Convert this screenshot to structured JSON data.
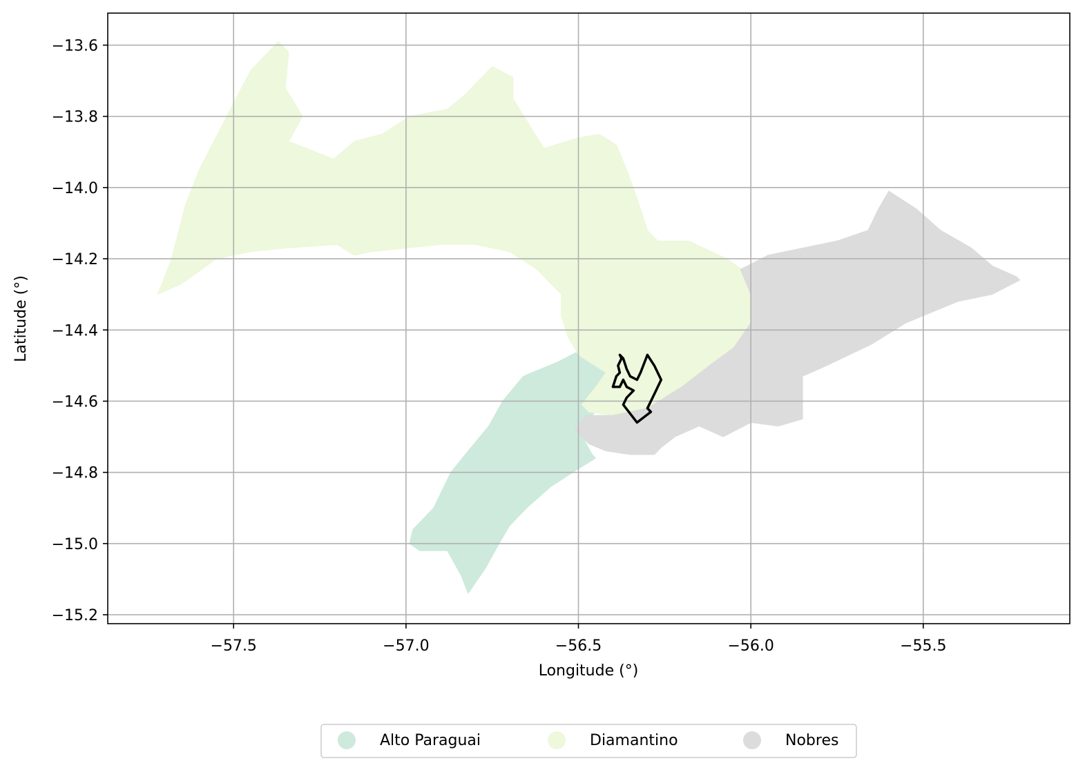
{
  "chart_data": {
    "type": "map",
    "xlabel": "Longitude (°)",
    "ylabel": "Latitude (°)",
    "xlim": [
      -57.865,
      -55.075
    ],
    "ylim": [
      -15.225,
      -13.51
    ],
    "grid": true,
    "xticks": [
      {
        "value": -57.5,
        "label": "−57.5"
      },
      {
        "value": -57.0,
        "label": "−57.0"
      },
      {
        "value": -56.5,
        "label": "−56.5"
      },
      {
        "value": -56.0,
        "label": "−56.0"
      },
      {
        "value": -55.5,
        "label": "−55.5"
      }
    ],
    "yticks": [
      {
        "value": -13.6,
        "label": "−13.6"
      },
      {
        "value": -13.8,
        "label": "−13.8"
      },
      {
        "value": -14.0,
        "label": "−14.0"
      },
      {
        "value": -14.2,
        "label": "−14.2"
      },
      {
        "value": -14.4,
        "label": "−14.4"
      },
      {
        "value": -14.6,
        "label": "−14.6"
      },
      {
        "value": -14.8,
        "label": "−14.8"
      },
      {
        "value": -15.0,
        "label": "−15.0"
      },
      {
        "value": -15.2,
        "label": "−15.2"
      }
    ],
    "legend_position": "bottom-center",
    "regions": [
      {
        "name": "Alto Paraguai",
        "color": "#cdeadc",
        "coords": [
          [
            -56.45,
            -14.42
          ],
          [
            -56.42,
            -14.47
          ],
          [
            -56.37,
            -14.5
          ],
          [
            -56.38,
            -14.55
          ],
          [
            -56.44,
            -14.62
          ],
          [
            -56.5,
            -14.68
          ],
          [
            -56.46,
            -14.75
          ],
          [
            -56.45,
            -14.76
          ],
          [
            -56.5,
            -14.79
          ],
          [
            -56.58,
            -14.84
          ],
          [
            -56.65,
            -14.9
          ],
          [
            -56.7,
            -14.95
          ],
          [
            -56.73,
            -15.0
          ],
          [
            -56.77,
            -15.07
          ],
          [
            -56.82,
            -15.14
          ],
          [
            -56.84,
            -15.09
          ],
          [
            -56.88,
            -15.02
          ],
          [
            -56.96,
            -15.02
          ],
          [
            -56.99,
            -15.0
          ],
          [
            -56.98,
            -14.96
          ],
          [
            -56.92,
            -14.9
          ],
          [
            -56.87,
            -14.8
          ],
          [
            -56.82,
            -14.74
          ],
          [
            -56.76,
            -14.67
          ],
          [
            -56.72,
            -14.6
          ],
          [
            -56.66,
            -14.53
          ],
          [
            -56.56,
            -14.49
          ],
          [
            -56.5,
            -14.46
          ]
        ]
      },
      {
        "name": "Diamantino",
        "color": "#edf8dc",
        "coords": [
          [
            -57.37,
            -13.59
          ],
          [
            -57.34,
            -13.62
          ],
          [
            -57.35,
            -13.72
          ],
          [
            -57.3,
            -13.8
          ],
          [
            -57.34,
            -13.87
          ],
          [
            -57.21,
            -13.92
          ],
          [
            -57.15,
            -13.87
          ],
          [
            -57.07,
            -13.85
          ],
          [
            -56.99,
            -13.8
          ],
          [
            -56.88,
            -13.78
          ],
          [
            -56.83,
            -13.74
          ],
          [
            -56.75,
            -13.66
          ],
          [
            -56.69,
            -13.69
          ],
          [
            -56.69,
            -13.75
          ],
          [
            -56.6,
            -13.89
          ],
          [
            -56.5,
            -13.86
          ],
          [
            -56.44,
            -13.85
          ],
          [
            -56.39,
            -13.88
          ],
          [
            -56.36,
            -13.95
          ],
          [
            -56.33,
            -14.03
          ],
          [
            -56.3,
            -14.12
          ],
          [
            -56.27,
            -14.15
          ],
          [
            -56.18,
            -14.15
          ],
          [
            -56.07,
            -14.2
          ],
          [
            -56.01,
            -14.24
          ],
          [
            -55.99,
            -14.3
          ],
          [
            -56.0,
            -14.38
          ],
          [
            -56.05,
            -14.45
          ],
          [
            -56.1,
            -14.49
          ],
          [
            -56.18,
            -14.56
          ],
          [
            -56.3,
            -14.62
          ],
          [
            -56.4,
            -14.64
          ],
          [
            -56.47,
            -14.63
          ],
          [
            -56.49,
            -14.61
          ],
          [
            -56.45,
            -14.56
          ],
          [
            -56.42,
            -14.52
          ],
          [
            -56.5,
            -14.47
          ],
          [
            -56.53,
            -14.42
          ],
          [
            -56.55,
            -14.36
          ],
          [
            -56.55,
            -14.3
          ],
          [
            -56.62,
            -14.23
          ],
          [
            -56.7,
            -14.18
          ],
          [
            -56.8,
            -14.16
          ],
          [
            -56.9,
            -14.16
          ],
          [
            -57.0,
            -14.17
          ],
          [
            -57.1,
            -14.18
          ],
          [
            -57.15,
            -14.19
          ],
          [
            -57.2,
            -14.16
          ],
          [
            -57.35,
            -14.17
          ],
          [
            -57.45,
            -14.18
          ],
          [
            -57.55,
            -14.2
          ],
          [
            -57.65,
            -14.27
          ],
          [
            -57.72,
            -14.3
          ],
          [
            -57.68,
            -14.2
          ],
          [
            -57.64,
            -14.05
          ],
          [
            -57.6,
            -13.95
          ],
          [
            -57.52,
            -13.8
          ],
          [
            -57.45,
            -13.67
          ]
        ]
      },
      {
        "name": "Nobres",
        "color": "#dcdcdc",
        "coords": [
          [
            -56.03,
            -14.23
          ],
          [
            -55.95,
            -14.19
          ],
          [
            -55.75,
            -14.15
          ],
          [
            -55.66,
            -14.12
          ],
          [
            -55.63,
            -14.06
          ],
          [
            -55.6,
            -14.01
          ],
          [
            -55.52,
            -14.06
          ],
          [
            -55.45,
            -14.12
          ],
          [
            -55.36,
            -14.17
          ],
          [
            -55.3,
            -14.22
          ],
          [
            -55.23,
            -14.25
          ],
          [
            -55.22,
            -14.26
          ],
          [
            -55.3,
            -14.3
          ],
          [
            -55.4,
            -14.32
          ],
          [
            -55.55,
            -14.38
          ],
          [
            -55.65,
            -14.44
          ],
          [
            -55.78,
            -14.5
          ],
          [
            -55.85,
            -14.53
          ],
          [
            -55.85,
            -14.6
          ],
          [
            -55.85,
            -14.65
          ],
          [
            -55.92,
            -14.67
          ],
          [
            -56.0,
            -14.66
          ],
          [
            -56.08,
            -14.7
          ],
          [
            -56.15,
            -14.67
          ],
          [
            -56.22,
            -14.7
          ],
          [
            -56.26,
            -14.73
          ],
          [
            -56.28,
            -14.75
          ],
          [
            -56.35,
            -14.75
          ],
          [
            -56.42,
            -14.74
          ],
          [
            -56.47,
            -14.72
          ],
          [
            -56.51,
            -14.68
          ],
          [
            -56.48,
            -14.64
          ],
          [
            -56.4,
            -14.64
          ],
          [
            -56.3,
            -14.62
          ],
          [
            -56.2,
            -14.56
          ],
          [
            -56.12,
            -14.5
          ],
          [
            -56.05,
            -14.45
          ],
          [
            -56.0,
            -14.38
          ],
          [
            -56.0,
            -14.3
          ]
        ]
      }
    ],
    "highlight_outline": {
      "color": "#000000",
      "coords": [
        [
          -56.38,
          -14.47
        ],
        [
          -56.37,
          -14.48
        ],
        [
          -56.36,
          -14.51
        ],
        [
          -56.35,
          -14.53
        ],
        [
          -56.33,
          -14.54
        ],
        [
          -56.32,
          -14.52
        ],
        [
          -56.3,
          -14.47
        ],
        [
          -56.28,
          -14.5
        ],
        [
          -56.26,
          -14.54
        ],
        [
          -56.28,
          -14.58
        ],
        [
          -56.3,
          -14.62
        ],
        [
          -56.29,
          -14.63
        ],
        [
          -56.33,
          -14.66
        ],
        [
          -56.37,
          -14.61
        ],
        [
          -56.36,
          -14.59
        ],
        [
          -56.35,
          -14.58
        ],
        [
          -56.34,
          -14.57
        ],
        [
          -56.36,
          -14.56
        ],
        [
          -56.37,
          -14.54
        ],
        [
          -56.38,
          -14.56
        ],
        [
          -56.4,
          -14.56
        ],
        [
          -56.39,
          -14.53
        ],
        [
          -56.38,
          -14.52
        ],
        [
          -56.385,
          -14.5
        ],
        [
          -56.38,
          -14.49
        ],
        [
          -56.375,
          -14.48
        ]
      ]
    }
  },
  "legend": {
    "items": [
      {
        "label": "Alto Paraguai",
        "color": "#cdeadc"
      },
      {
        "label": "Diamantino",
        "color": "#edf8dc"
      },
      {
        "label": "Nobres",
        "color": "#dcdcdc"
      }
    ]
  }
}
